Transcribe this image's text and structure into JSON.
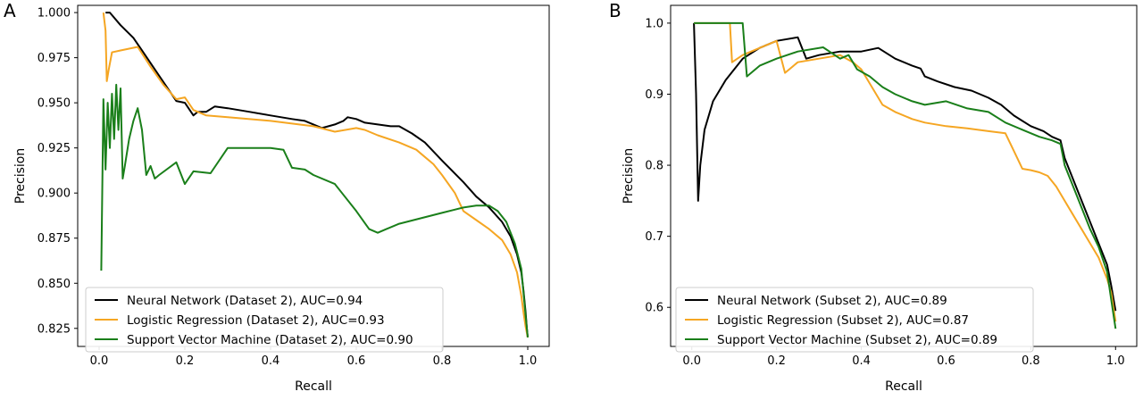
{
  "chart_data": [
    {
      "panel_label": "A",
      "type": "line",
      "xlabel": "Recall",
      "ylabel": "Precision",
      "xlim": [
        -0.05,
        1.05
      ],
      "ylim": [
        0.815,
        1.004
      ],
      "xticks": [
        "0.0",
        "0.2",
        "0.4",
        "0.6",
        "0.8",
        "1.0"
      ],
      "xtick_values": [
        0.0,
        0.2,
        0.4,
        0.6,
        0.8,
        1.0
      ],
      "yticks": [
        "0.825",
        "0.850",
        "0.875",
        "0.900",
        "0.925",
        "0.950",
        "0.975",
        "1.000"
      ],
      "ytick_values": [
        0.825,
        0.85,
        0.875,
        0.9,
        0.925,
        0.95,
        0.975,
        1.0
      ],
      "legend_position": "lower-left",
      "grid": false,
      "series": [
        {
          "name": "Neural Network (Dataset 2), AUC=0.94",
          "color": "#000000",
          "points": [
            [
              0.015,
              1.0
            ],
            [
              0.025,
              1.0
            ],
            [
              0.05,
              0.993
            ],
            [
              0.08,
              0.986
            ],
            [
              0.1,
              0.979
            ],
            [
              0.14,
              0.965
            ],
            [
              0.18,
              0.951
            ],
            [
              0.2,
              0.95
            ],
            [
              0.22,
              0.943
            ],
            [
              0.23,
              0.945
            ],
            [
              0.25,
              0.945
            ],
            [
              0.27,
              0.948
            ],
            [
              0.3,
              0.947
            ],
            [
              0.35,
              0.945
            ],
            [
              0.4,
              0.943
            ],
            [
              0.45,
              0.941
            ],
            [
              0.48,
              0.94
            ],
            [
              0.5,
              0.938
            ],
            [
              0.52,
              0.936
            ],
            [
              0.55,
              0.938
            ],
            [
              0.57,
              0.94
            ],
            [
              0.58,
              0.942
            ],
            [
              0.6,
              0.941
            ],
            [
              0.62,
              0.939
            ],
            [
              0.65,
              0.938
            ],
            [
              0.68,
              0.937
            ],
            [
              0.7,
              0.937
            ],
            [
              0.73,
              0.933
            ],
            [
              0.76,
              0.928
            ],
            [
              0.8,
              0.918
            ],
            [
              0.85,
              0.906
            ],
            [
              0.88,
              0.898
            ],
            [
              0.91,
              0.892
            ],
            [
              0.94,
              0.884
            ],
            [
              0.96,
              0.876
            ],
            [
              0.975,
              0.866
            ],
            [
              0.985,
              0.856
            ],
            [
              0.99,
              0.846
            ],
            [
              0.995,
              0.834
            ],
            [
              0.998,
              0.825
            ],
            [
              1.0,
              0.82
            ]
          ]
        },
        {
          "name": "Logistic Regression (Dataset 2), AUC=0.93",
          "color": "#f5a623",
          "points": [
            [
              0.01,
              1.0
            ],
            [
              0.015,
              0.99
            ],
            [
              0.018,
              0.962
            ],
            [
              0.022,
              0.968
            ],
            [
              0.03,
              0.978
            ],
            [
              0.05,
              0.979
            ],
            [
              0.09,
              0.981
            ],
            [
              0.12,
              0.97
            ],
            [
              0.15,
              0.96
            ],
            [
              0.18,
              0.952
            ],
            [
              0.2,
              0.953
            ],
            [
              0.22,
              0.946
            ],
            [
              0.25,
              0.943
            ],
            [
              0.3,
              0.942
            ],
            [
              0.4,
              0.94
            ],
            [
              0.5,
              0.937
            ],
            [
              0.55,
              0.934
            ],
            [
              0.6,
              0.936
            ],
            [
              0.62,
              0.935
            ],
            [
              0.65,
              0.932
            ],
            [
              0.7,
              0.928
            ],
            [
              0.74,
              0.924
            ],
            [
              0.76,
              0.92
            ],
            [
              0.78,
              0.916
            ],
            [
              0.8,
              0.91
            ],
            [
              0.83,
              0.9
            ],
            [
              0.85,
              0.89
            ],
            [
              0.88,
              0.885
            ],
            [
              0.91,
              0.88
            ],
            [
              0.94,
              0.874
            ],
            [
              0.96,
              0.866
            ],
            [
              0.975,
              0.856
            ],
            [
              0.985,
              0.843
            ],
            [
              0.99,
              0.834
            ],
            [
              0.995,
              0.826
            ],
            [
              1.0,
              0.82
            ]
          ]
        },
        {
          "name": "Support Vector Machine (Dataset 2), AUC=0.90",
          "color": "#1a7f1a",
          "points": [
            [
              0.005,
              0.857
            ],
            [
              0.01,
              0.952
            ],
            [
              0.015,
              0.913
            ],
            [
              0.02,
              0.95
            ],
            [
              0.025,
              0.925
            ],
            [
              0.03,
              0.955
            ],
            [
              0.035,
              0.93
            ],
            [
              0.04,
              0.96
            ],
            [
              0.045,
              0.935
            ],
            [
              0.05,
              0.958
            ],
            [
              0.055,
              0.908
            ],
            [
              0.06,
              0.915
            ],
            [
              0.07,
              0.93
            ],
            [
              0.08,
              0.94
            ],
            [
              0.09,
              0.947
            ],
            [
              0.1,
              0.935
            ],
            [
              0.11,
              0.91
            ],
            [
              0.12,
              0.915
            ],
            [
              0.13,
              0.908
            ],
            [
              0.14,
              0.91
            ],
            [
              0.18,
              0.917
            ],
            [
              0.2,
              0.905
            ],
            [
              0.22,
              0.912
            ],
            [
              0.26,
              0.911
            ],
            [
              0.3,
              0.925
            ],
            [
              0.35,
              0.925
            ],
            [
              0.4,
              0.925
            ],
            [
              0.43,
              0.924
            ],
            [
              0.45,
              0.914
            ],
            [
              0.48,
              0.913
            ],
            [
              0.5,
              0.91
            ],
            [
              0.55,
              0.905
            ],
            [
              0.6,
              0.89
            ],
            [
              0.63,
              0.88
            ],
            [
              0.65,
              0.878
            ],
            [
              0.67,
              0.88
            ],
            [
              0.7,
              0.883
            ],
            [
              0.75,
              0.886
            ],
            [
              0.8,
              0.889
            ],
            [
              0.85,
              0.892
            ],
            [
              0.88,
              0.893
            ],
            [
              0.91,
              0.893
            ],
            [
              0.93,
              0.89
            ],
            [
              0.95,
              0.884
            ],
            [
              0.97,
              0.872
            ],
            [
              0.985,
              0.858
            ],
            [
              0.99,
              0.845
            ],
            [
              0.995,
              0.832
            ],
            [
              1.0,
              0.82
            ]
          ]
        }
      ]
    },
    {
      "panel_label": "B",
      "type": "line",
      "xlabel": "Recall",
      "ylabel": "Precision",
      "xlim": [
        -0.05,
        1.05
      ],
      "ylim": [
        0.545,
        1.025
      ],
      "xticks": [
        "0.0",
        "0.2",
        "0.4",
        "0.6",
        "0.8",
        "1.0"
      ],
      "xtick_values": [
        0.0,
        0.2,
        0.4,
        0.6,
        0.8,
        1.0
      ],
      "yticks": [
        "0.6",
        "0.7",
        "0.8",
        "0.9",
        "1.0"
      ],
      "ytick_values": [
        0.6,
        0.7,
        0.8,
        0.9,
        1.0
      ],
      "legend_position": "lower-left",
      "grid": false,
      "series": [
        {
          "name": "Neural Network (Subset 2), AUC=0.89",
          "color": "#000000",
          "points": [
            [
              0.005,
              1.0
            ],
            [
              0.01,
              0.9
            ],
            [
              0.015,
              0.75
            ],
            [
              0.02,
              0.8
            ],
            [
              0.03,
              0.85
            ],
            [
              0.05,
              0.89
            ],
            [
              0.08,
              0.92
            ],
            [
              0.12,
              0.95
            ],
            [
              0.16,
              0.965
            ],
            [
              0.2,
              0.975
            ],
            [
              0.25,
              0.98
            ],
            [
              0.27,
              0.95
            ],
            [
              0.3,
              0.955
            ],
            [
              0.35,
              0.96
            ],
            [
              0.4,
              0.96
            ],
            [
              0.44,
              0.965
            ],
            [
              0.48,
              0.95
            ],
            [
              0.52,
              0.94
            ],
            [
              0.54,
              0.936
            ],
            [
              0.55,
              0.925
            ],
            [
              0.58,
              0.918
            ],
            [
              0.62,
              0.91
            ],
            [
              0.66,
              0.905
            ],
            [
              0.7,
              0.895
            ],
            [
              0.73,
              0.885
            ],
            [
              0.76,
              0.87
            ],
            [
              0.8,
              0.855
            ],
            [
              0.83,
              0.848
            ],
            [
              0.85,
              0.84
            ],
            [
              0.87,
              0.835
            ],
            [
              0.88,
              0.81
            ],
            [
              0.9,
              0.78
            ],
            [
              0.92,
              0.75
            ],
            [
              0.94,
              0.72
            ],
            [
              0.96,
              0.69
            ],
            [
              0.98,
              0.66
            ],
            [
              0.99,
              0.63
            ],
            [
              1.0,
              0.595
            ]
          ]
        },
        {
          "name": "Logistic Regression (Subset 2), AUC=0.87",
          "color": "#f5a623",
          "points": [
            [
              0.005,
              1.0
            ],
            [
              0.09,
              1.0
            ],
            [
              0.095,
              0.945
            ],
            [
              0.12,
              0.955
            ],
            [
              0.16,
              0.965
            ],
            [
              0.2,
              0.975
            ],
            [
              0.22,
              0.93
            ],
            [
              0.25,
              0.945
            ],
            [
              0.3,
              0.95
            ],
            [
              0.35,
              0.955
            ],
            [
              0.38,
              0.945
            ],
            [
              0.4,
              0.935
            ],
            [
              0.42,
              0.915
            ],
            [
              0.45,
              0.885
            ],
            [
              0.48,
              0.875
            ],
            [
              0.52,
              0.865
            ],
            [
              0.55,
              0.86
            ],
            [
              0.6,
              0.855
            ],
            [
              0.65,
              0.852
            ],
            [
              0.7,
              0.848
            ],
            [
              0.74,
              0.845
            ],
            [
              0.76,
              0.82
            ],
            [
              0.78,
              0.795
            ],
            [
              0.8,
              0.793
            ],
            [
              0.82,
              0.79
            ],
            [
              0.84,
              0.785
            ],
            [
              0.86,
              0.77
            ],
            [
              0.88,
              0.75
            ],
            [
              0.9,
              0.73
            ],
            [
              0.92,
              0.71
            ],
            [
              0.94,
              0.69
            ],
            [
              0.96,
              0.67
            ],
            [
              0.98,
              0.64
            ],
            [
              0.99,
              0.62
            ],
            [
              1.0,
              0.58
            ]
          ]
        },
        {
          "name": "Support Vector Machine (Subset 2), AUC=0.89",
          "color": "#1a7f1a",
          "points": [
            [
              0.005,
              1.0
            ],
            [
              0.12,
              1.0
            ],
            [
              0.13,
              0.925
            ],
            [
              0.16,
              0.94
            ],
            [
              0.2,
              0.95
            ],
            [
              0.25,
              0.96
            ],
            [
              0.31,
              0.966
            ],
            [
              0.35,
              0.95
            ],
            [
              0.37,
              0.955
            ],
            [
              0.39,
              0.935
            ],
            [
              0.42,
              0.925
            ],
            [
              0.45,
              0.91
            ],
            [
              0.48,
              0.9
            ],
            [
              0.52,
              0.89
            ],
            [
              0.55,
              0.885
            ],
            [
              0.6,
              0.89
            ],
            [
              0.65,
              0.88
            ],
            [
              0.7,
              0.875
            ],
            [
              0.74,
              0.86
            ],
            [
              0.78,
              0.85
            ],
            [
              0.82,
              0.84
            ],
            [
              0.85,
              0.835
            ],
            [
              0.87,
              0.83
            ],
            [
              0.88,
              0.8
            ],
            [
              0.9,
              0.77
            ],
            [
              0.92,
              0.74
            ],
            [
              0.94,
              0.71
            ],
            [
              0.96,
              0.685
            ],
            [
              0.98,
              0.65
            ],
            [
              0.99,
              0.61
            ],
            [
              1.0,
              0.57
            ]
          ]
        }
      ]
    }
  ]
}
